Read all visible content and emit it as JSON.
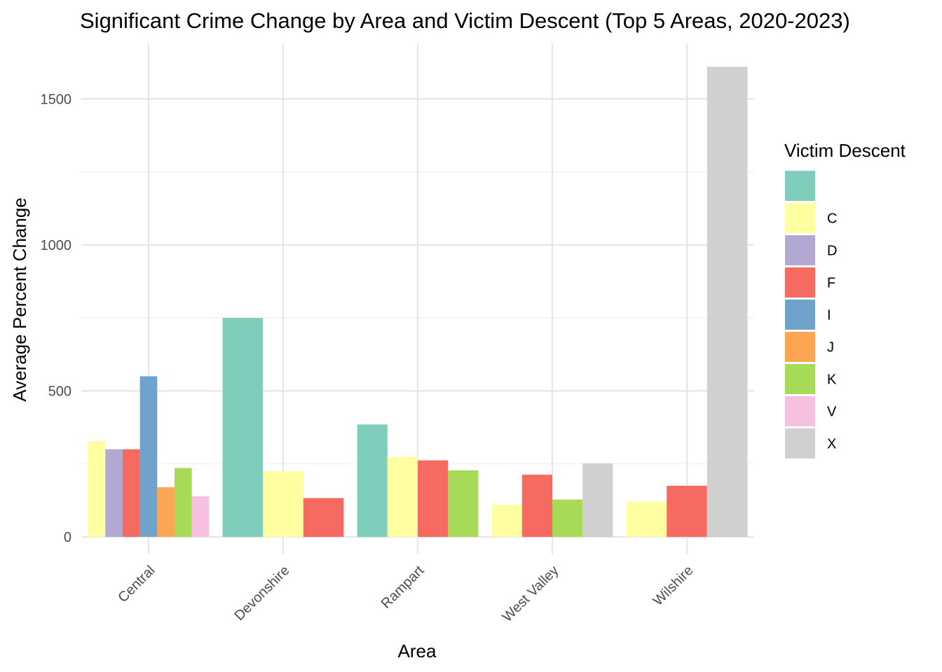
{
  "chart_data": {
    "type": "bar",
    "title": "Significant Crime Change by Area and Victim Descent (Top 5 Areas, 2020-2023)",
    "xlabel": "Area",
    "ylabel": "Average Percent Change",
    "categories": [
      "Central",
      "Devonshire",
      "Rampart",
      "West Valley",
      "Wilshire"
    ],
    "ylim": [
      -60,
      1690
    ],
    "yticks": [
      0,
      500,
      1000,
      1500
    ],
    "grid": true,
    "legend": {
      "title": "Victim Descent",
      "placement": "right",
      "entries": [
        {
          "key": "",
          "label": "",
          "color": "#7FCDBB"
        },
        {
          "key": "C",
          "label": "C",
          "color": "#FFFFA1"
        },
        {
          "key": "D",
          "label": "D",
          "color": "#B1A9D1"
        },
        {
          "key": "F",
          "label": "F",
          "color": "#F76A61"
        },
        {
          "key": "I",
          "label": "I",
          "color": "#6FA3CB"
        },
        {
          "key": "J",
          "label": "J",
          "color": "#FCA653"
        },
        {
          "key": "K",
          "label": "K",
          "color": "#A7DA57"
        },
        {
          "key": "V",
          "label": "V",
          "color": "#F8C0E0"
        },
        {
          "key": "X",
          "label": "X",
          "color": "#D0D0D0"
        }
      ]
    },
    "groups": [
      {
        "category": "Central",
        "bars": [
          {
            "descent": "C",
            "value": 328
          },
          {
            "descent": "D",
            "value": 300
          },
          {
            "descent": "F",
            "value": 300
          },
          {
            "descent": "I",
            "value": 550
          },
          {
            "descent": "J",
            "value": 170
          },
          {
            "descent": "K",
            "value": 236
          },
          {
            "descent": "V",
            "value": 139
          }
        ]
      },
      {
        "category": "Devonshire",
        "bars": [
          {
            "descent": "",
            "value": 750
          },
          {
            "descent": "C",
            "value": 225
          },
          {
            "descent": "F",
            "value": 133
          }
        ]
      },
      {
        "category": "Rampart",
        "bars": [
          {
            "descent": "",
            "value": 385
          },
          {
            "descent": "C",
            "value": 273
          },
          {
            "descent": "F",
            "value": 262
          },
          {
            "descent": "K",
            "value": 228
          }
        ]
      },
      {
        "category": "West Valley",
        "bars": [
          {
            "descent": "C",
            "value": 110
          },
          {
            "descent": "F",
            "value": 213
          },
          {
            "descent": "K",
            "value": 128
          },
          {
            "descent": "X",
            "value": 252
          }
        ]
      },
      {
        "category": "Wilshire",
        "bars": [
          {
            "descent": "C",
            "value": 121
          },
          {
            "descent": "F",
            "value": 175
          },
          {
            "descent": "X",
            "value": 1610
          }
        ]
      }
    ]
  }
}
